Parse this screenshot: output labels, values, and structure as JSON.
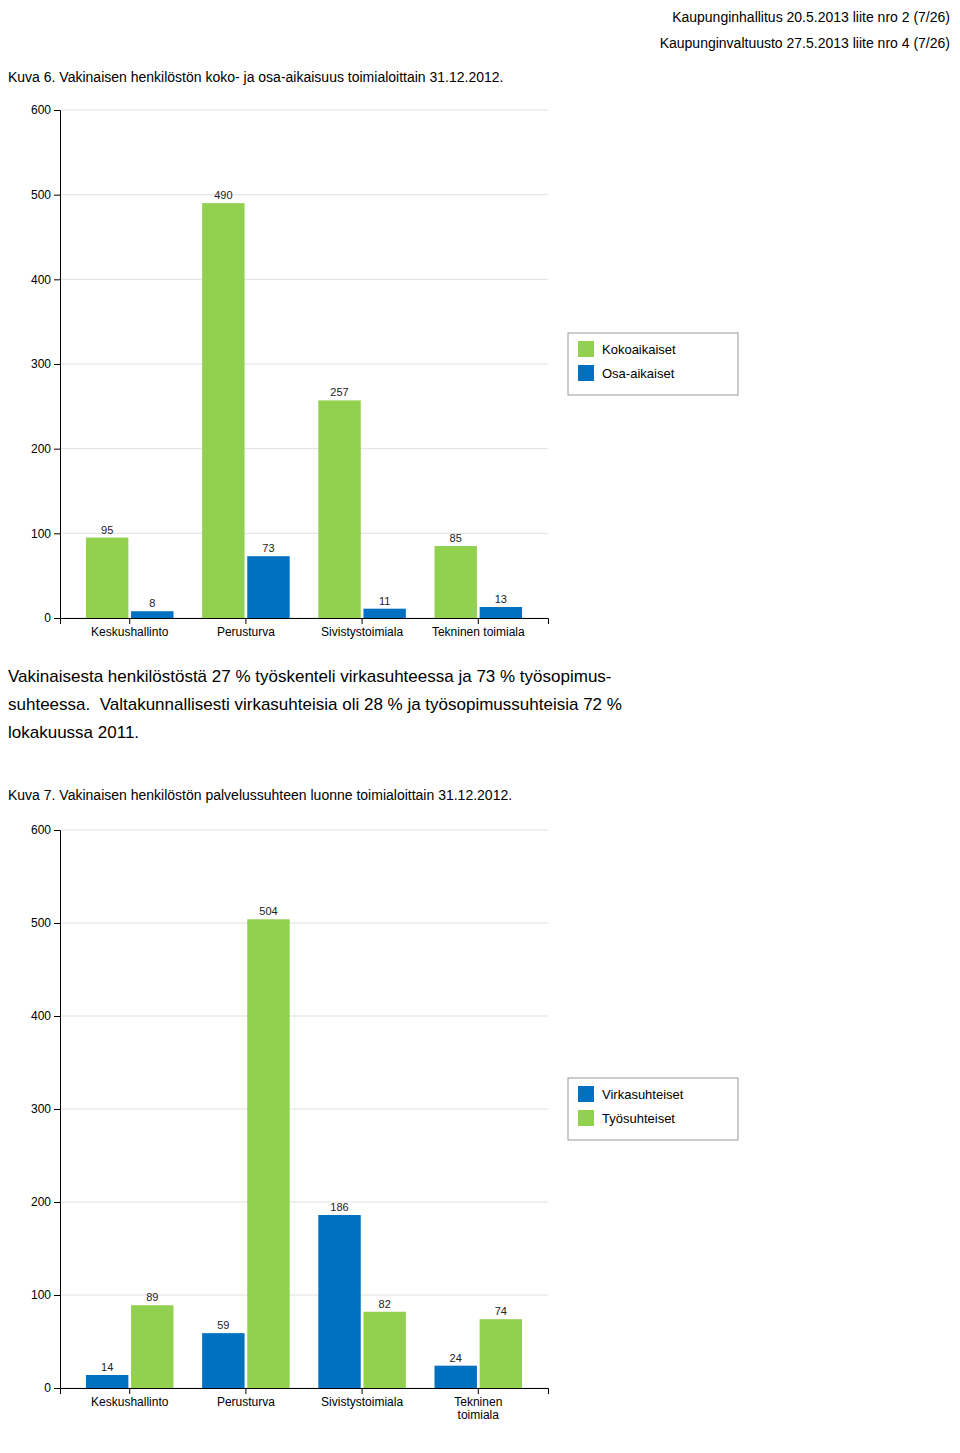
{
  "header": [
    "Kaupunginhallitus 20.5.2013 liite nro 2 (7/26)",
    "Kaupunginvaltuusto 27.5.2013 liite nro 4 (7/26)"
  ],
  "paragraph": [
    "Vakinaisesta henkilöstöstä 27 % työskenteli virkasuhteessa ja 73 % työsopimus-",
    "suhteessa.  Valtakunnallisesti virkasuhteisia oli 28 % ja työsopimussuhteisia 72 %",
    "lokakuussa 2011."
  ],
  "chart_data": [
    {
      "type": "bar",
      "title": "Kuva 6. Vakinaisen henkilöstön koko- ja osa-aikaisuus toimialoittain 31.12.2012.",
      "categories": [
        "Keskushallinto",
        "Perusturva",
        "Sivistystoimiala",
        "Tekninen toimiala"
      ],
      "series": [
        {
          "name": "Kokoaikaiset",
          "color": "#92d050",
          "values": [
            95,
            490,
            257,
            85
          ]
        },
        {
          "name": "Osa-aikaiset",
          "color": "#0070c0",
          "values": [
            8,
            73,
            11,
            13
          ]
        }
      ],
      "ylim": [
        0,
        600
      ],
      "yticks": [
        0,
        100,
        200,
        300,
        400,
        500,
        600
      ],
      "grid": true,
      "legend": "right",
      "data_labels": true
    },
    {
      "type": "bar",
      "title": "Kuva 7. Vakinaisen henkilöstön palvelussuhteen luonne toimialoittain 31.12.2012.",
      "categories": [
        "Keskushallinto",
        "Perusturva",
        "Sivistystoimiala",
        "Tekninen\ntoimiala"
      ],
      "series": [
        {
          "name": "Virkasuhteiset",
          "color": "#0070c0",
          "values": [
            14,
            59,
            186,
            24
          ]
        },
        {
          "name": "Työsuhteiset",
          "color": "#92d050",
          "values": [
            89,
            504,
            82,
            74
          ]
        }
      ],
      "ylim": [
        0,
        600
      ],
      "yticks": [
        0,
        100,
        200,
        300,
        400,
        500,
        600
      ],
      "grid": true,
      "legend": "right",
      "data_labels": true
    }
  ]
}
